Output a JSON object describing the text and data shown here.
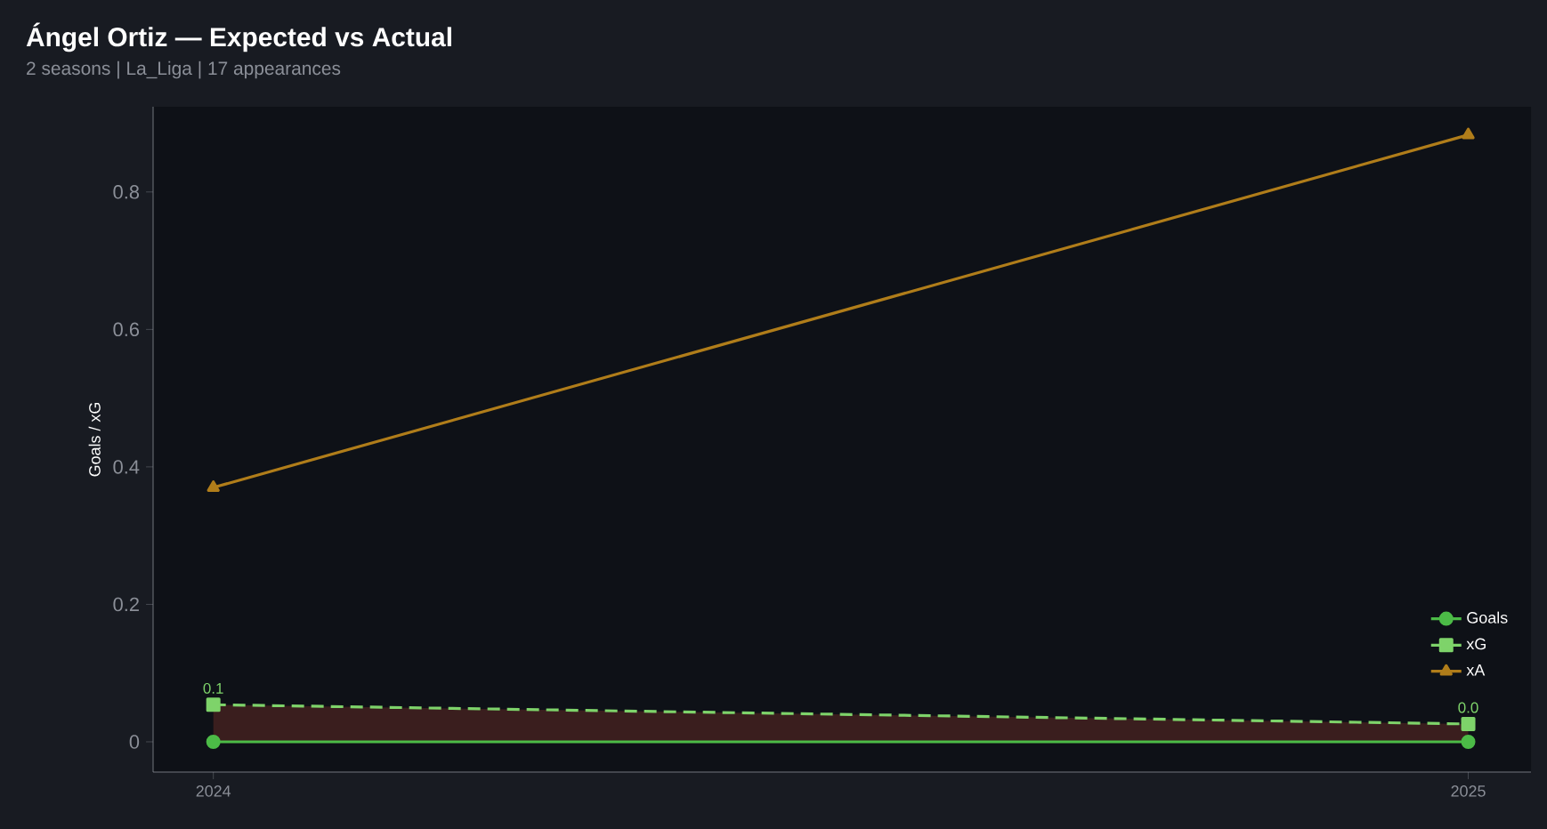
{
  "chart_data": {
    "type": "line",
    "title": "Ángel Ortiz — Expected vs Actual",
    "subtitle": "2 seasons | La_Liga | 17 appearances",
    "ylabel": "Goals / xG",
    "x": [
      2024,
      2025
    ],
    "xlim": [
      2023.952,
      2025.05
    ],
    "xticks": [
      2024,
      2025
    ],
    "ylim": [
      -0.044,
      0.924
    ],
    "yticks": [
      0,
      0.2,
      0.4,
      0.6,
      0.8
    ],
    "series": [
      {
        "name": "Goals",
        "color": "#4cbb47",
        "values": [
          0,
          0
        ],
        "marker": "circle",
        "line_style": "solid"
      },
      {
        "name": "xG",
        "color": "#7ed36a",
        "values": [
          0.054,
          0.026
        ],
        "marker": "square",
        "line_style": "dashed",
        "lower": [
          0,
          0
        ],
        "upper": [
          0.054,
          0.026
        ],
        "value_labels": [
          "0.1",
          "0.0"
        ]
      },
      {
        "name": "xA",
        "color": "#b07d1a",
        "values": [
          0.37,
          0.883
        ],
        "marker": "triangle",
        "line_style": "solid"
      }
    ],
    "legend": "bottom right",
    "grid": false
  }
}
